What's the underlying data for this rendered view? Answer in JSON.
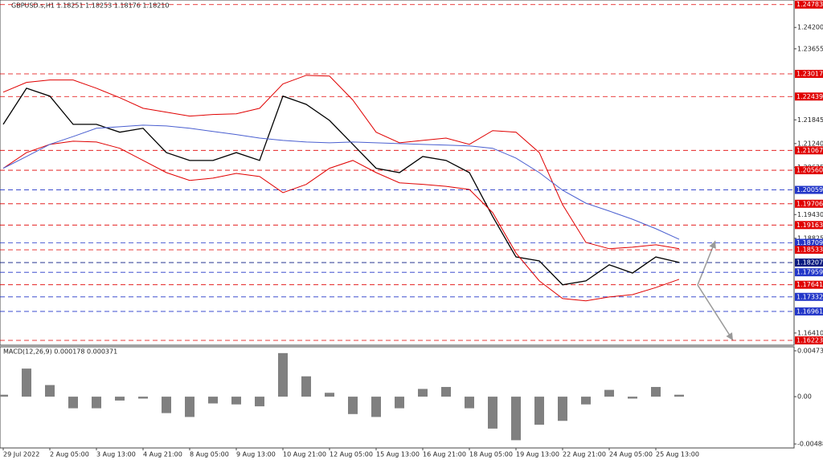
{
  "chart_data": [
    {
      "type": "line",
      "title": "GBPUSD.s,H1  1.18251 1.18253 1.18176 1.18210",
      "categories": [
        "29 Jul 2022",
        null,
        "2 Aug 05:00",
        null,
        "3 Aug 13:00",
        null,
        "4 Aug 21:00",
        null,
        "8 Aug 05:00",
        null,
        "9 Aug 13:00",
        null,
        "10 Aug 21:00",
        null,
        "12 Aug 05:00",
        null,
        "15 Aug 13:00",
        null,
        "16 Aug 21:00",
        null,
        "18 Aug 05:00",
        null,
        "19 Aug 13:00",
        null,
        "22 Aug 21:00",
        null,
        "24 Aug 05:00",
        null,
        "25 Aug 13:00",
        null
      ],
      "series": [
        {
          "color": "#000000",
          "values": [
            1.2173,
            1.2265,
            1.2245,
            1.2173,
            1.2173,
            1.2153,
            1.2163,
            1.2101,
            1.2081,
            1.2081,
            1.2101,
            1.2081,
            1.2245,
            1.2224,
            1.2183,
            1.2122,
            1.2061,
            1.205,
            1.2091,
            1.2081,
            1.205,
            1.1938,
            1.1835,
            1.1825,
            1.1764,
            1.1774,
            1.1815,
            1.1794,
            1.1835,
            1.1821
          ]
        },
        {
          "color": "#e00000",
          "values": [
            1.2255,
            1.228,
            1.2286,
            1.2286,
            1.2265,
            1.2241,
            1.2214,
            1.2204,
            1.2194,
            1.2198,
            1.22,
            1.2214,
            1.2276,
            1.2298,
            1.2296,
            1.2235,
            1.2153,
            1.2126,
            1.2132,
            1.2138,
            1.2122,
            1.2157,
            1.2153,
            1.2101,
            1.1968,
            1.1872,
            1.1856,
            1.186,
            1.1866,
            1.1856
          ]
        },
        {
          "color": "#e00000",
          "values": [
            1.2061,
            1.2101,
            1.2122,
            1.213,
            1.2128,
            1.2112,
            1.2081,
            1.205,
            1.203,
            1.2036,
            1.2048,
            1.204,
            1.1999,
            1.202,
            1.2061,
            1.2081,
            1.205,
            1.2024,
            1.202,
            1.2015,
            1.2007,
            1.1948,
            1.1845,
            1.1774,
            1.1729,
            1.1723,
            1.1733,
            1.1739,
            1.1757,
            1.1778
          ]
        },
        {
          "color": "#4a5fd0",
          "values": [
            1.2061,
            1.2091,
            1.2122,
            1.2142,
            1.2163,
            1.2167,
            1.2171,
            1.2169,
            1.2163,
            1.2155,
            1.2147,
            1.2138,
            1.2132,
            1.2128,
            1.2126,
            1.2128,
            1.2126,
            1.2124,
            1.2122,
            1.212,
            1.2118,
            1.2112,
            1.2087,
            1.205,
            1.2005,
            1.1972,
            1.1952,
            1.1931,
            1.1907,
            1.188
          ]
        }
      ],
      "ylim": [
        1.161,
        1.249
      ],
      "yticks": [
        {
          "value": 1.242,
          "label": "1.24200"
        },
        {
          "value": 1.23655,
          "label": "1.23655"
        },
        {
          "value": 1.21845,
          "label": "1.21845"
        },
        {
          "value": 1.2124,
          "label": "1.21240"
        },
        {
          "value": 1.20635,
          "label": "1.20635"
        },
        {
          "value": 1.1943,
          "label": "1.19430"
        },
        {
          "value": 1.18825,
          "label": "1.18825"
        },
        {
          "value": 1.1641,
          "label": "1.16410"
        }
      ],
      "levels": [
        {
          "value": 1.24783,
          "label": "1.24783",
          "color": "#e00000"
        },
        {
          "value": 1.23017,
          "label": "1.23017",
          "color": "#e00000"
        },
        {
          "value": 1.22439,
          "label": "1.22439",
          "color": "#e00000"
        },
        {
          "value": 1.21067,
          "label": "1.21067",
          "color": "#e00000"
        },
        {
          "value": 1.2056,
          "label": "1.20560",
          "color": "#e00000"
        },
        {
          "value": 1.20059,
          "label": "1.20059",
          "color": "#2236c8"
        },
        {
          "value": 1.19706,
          "label": "1.19706",
          "color": "#e00000"
        },
        {
          "value": 1.19163,
          "label": "1.19163",
          "color": "#e00000"
        },
        {
          "value": 1.18709,
          "label": "1.18709",
          "color": "#2236c8"
        },
        {
          "value": 1.18533,
          "label": "1.18533",
          "color": "#e00000"
        },
        {
          "value": 1.18207,
          "label": "1.18207",
          "color": "#0a1a80"
        },
        {
          "value": 1.17959,
          "label": "1.17959",
          "color": "#2236c8"
        },
        {
          "value": 1.17641,
          "label": "1.17641",
          "color": "#e00000"
        },
        {
          "value": 1.17332,
          "label": "1.17332",
          "color": "#2236c8"
        },
        {
          "value": 1.16961,
          "label": "1.16961",
          "color": "#2236c8"
        },
        {
          "value": 1.16223,
          "label": "1.16223",
          "color": "#e00000"
        }
      ]
    },
    {
      "type": "bar",
      "title": "MACD(12,26,9) 0.000178 0.000371",
      "color": "#808080",
      "values": [
        0.0002,
        0.0029,
        0.0012,
        -0.0012,
        -0.0012,
        -0.0004,
        -0.0002,
        -0.0017,
        -0.0021,
        -0.0007,
        -0.0008,
        -0.001,
        0.0045,
        0.0021,
        0.0004,
        -0.0018,
        -0.0021,
        -0.0012,
        0.0008,
        0.001,
        -0.0012,
        -0.0033,
        -0.0045,
        -0.0029,
        -0.0025,
        -0.0008,
        0.0007,
        -0.0002,
        0.001,
        0.0002
      ],
      "ylim": [
        -0.0053,
        0.00515
      ],
      "yticks": [
        0.004738,
        {
          "value": 0,
          "label": "0.00"
        },
        -0.004889
      ]
    }
  ]
}
